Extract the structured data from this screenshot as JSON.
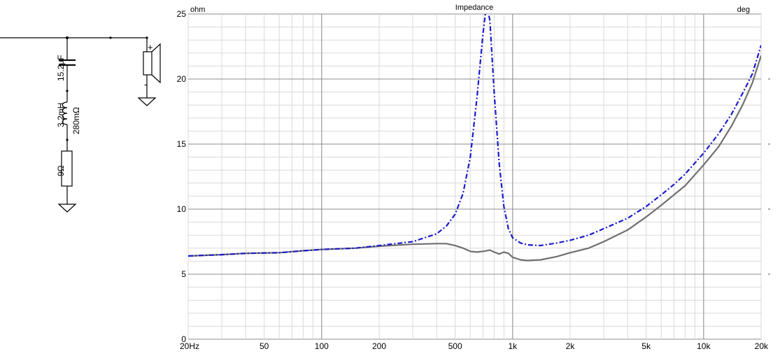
{
  "schematic": {
    "cap_label": "15.2µF",
    "ind_label": "3.2mH",
    "ind_res_label": "280mΩ",
    "res_label": "9Ω",
    "plus_label": "+",
    "minus_label": "-"
  },
  "colors": {
    "grid_major": "#8c8c8c",
    "grid_minor": "#d9d9d9",
    "series_system": "#1a1acc",
    "series_driver": "#707070",
    "schematic": "#000000"
  },
  "chart_data": {
    "type": "line",
    "title": "Impedance",
    "ylabel": "ohm",
    "y2label": "deg",
    "xscale": "log",
    "xlim": [
      20,
      20000
    ],
    "ylim": [
      0,
      25
    ],
    "grid": true,
    "x_ticks": [
      {
        "value": 20,
        "label": "20Hz"
      },
      {
        "value": 50,
        "label": "50"
      },
      {
        "value": 100,
        "label": "100"
      },
      {
        "value": 200,
        "label": "200"
      },
      {
        "value": 500,
        "label": "500"
      },
      {
        "value": 1000,
        "label": "1k"
      },
      {
        "value": 2000,
        "label": "2k"
      },
      {
        "value": 5000,
        "label": "5k"
      },
      {
        "value": 10000,
        "label": "10k"
      },
      {
        "value": 20000,
        "label": "20k"
      }
    ],
    "y_ticks": [
      {
        "value": 0,
        "label": "0"
      },
      {
        "value": 5,
        "label": "5"
      },
      {
        "value": 10,
        "label": "10"
      },
      {
        "value": 15,
        "label": "15"
      },
      {
        "value": 20,
        "label": "20"
      },
      {
        "value": 25,
        "label": "25"
      }
    ],
    "series": [
      {
        "style": "dash-dot",
        "color": "#1a1acc",
        "points": [
          [
            20,
            6.4
          ],
          [
            30,
            6.5
          ],
          [
            40,
            6.6
          ],
          [
            60,
            6.65
          ],
          [
            80,
            6.8
          ],
          [
            100,
            6.9
          ],
          [
            150,
            7.0
          ],
          [
            200,
            7.2
          ],
          [
            300,
            7.5
          ],
          [
            400,
            8.1
          ],
          [
            450,
            8.7
          ],
          [
            500,
            9.6
          ],
          [
            550,
            11.2
          ],
          [
            600,
            14.0
          ],
          [
            650,
            18.5
          ],
          [
            700,
            23.5
          ],
          [
            730,
            25.8
          ],
          [
            760,
            24.5
          ],
          [
            800,
            19.0
          ],
          [
            850,
            13.5
          ],
          [
            900,
            10.2
          ],
          [
            950,
            8.5
          ],
          [
            1000,
            7.8
          ],
          [
            1100,
            7.4
          ],
          [
            1200,
            7.25
          ],
          [
            1400,
            7.2
          ],
          [
            1700,
            7.4
          ],
          [
            2000,
            7.6
          ],
          [
            2500,
            8.0
          ],
          [
            3000,
            8.5
          ],
          [
            4000,
            9.3
          ],
          [
            5000,
            10.2
          ],
          [
            6000,
            11.1
          ],
          [
            7000,
            11.9
          ],
          [
            8000,
            12.7
          ],
          [
            10000,
            14.3
          ],
          [
            12000,
            15.8
          ],
          [
            14000,
            17.3
          ],
          [
            16000,
            18.9
          ],
          [
            18000,
            20.4
          ],
          [
            20000,
            22.6
          ]
        ]
      },
      {
        "style": "solid",
        "color": "#707070",
        "points": [
          [
            20,
            6.4
          ],
          [
            30,
            6.5
          ],
          [
            40,
            6.6
          ],
          [
            60,
            6.65
          ],
          [
            80,
            6.8
          ],
          [
            100,
            6.9
          ],
          [
            150,
            7.0
          ],
          [
            200,
            7.15
          ],
          [
            300,
            7.3
          ],
          [
            400,
            7.35
          ],
          [
            450,
            7.35
          ],
          [
            500,
            7.2
          ],
          [
            550,
            7.0
          ],
          [
            600,
            6.75
          ],
          [
            650,
            6.7
          ],
          [
            700,
            6.75
          ],
          [
            760,
            6.85
          ],
          [
            800,
            6.7
          ],
          [
            850,
            6.55
          ],
          [
            900,
            6.7
          ],
          [
            950,
            6.6
          ],
          [
            1000,
            6.3
          ],
          [
            1100,
            6.1
          ],
          [
            1200,
            6.05
          ],
          [
            1400,
            6.1
          ],
          [
            1700,
            6.35
          ],
          [
            2000,
            6.65
          ],
          [
            2500,
            7.0
          ],
          [
            3000,
            7.5
          ],
          [
            4000,
            8.4
          ],
          [
            5000,
            9.4
          ],
          [
            6000,
            10.3
          ],
          [
            7000,
            11.1
          ],
          [
            8000,
            11.8
          ],
          [
            10000,
            13.4
          ],
          [
            12000,
            14.8
          ],
          [
            14000,
            16.4
          ],
          [
            16000,
            18.0
          ],
          [
            18000,
            19.7
          ],
          [
            20000,
            21.8
          ]
        ]
      }
    ]
  }
}
